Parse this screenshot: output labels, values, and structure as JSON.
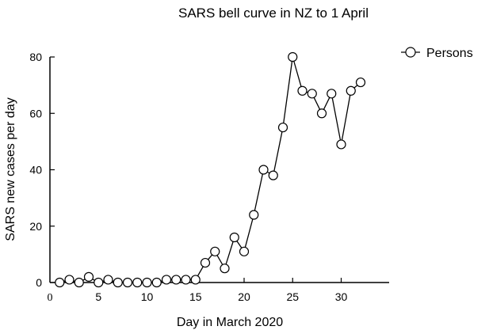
{
  "chart_data": {
    "type": "line",
    "title": "SARS bell curve in NZ to 1 April",
    "xlabel": "Day in March 2020",
    "ylabel": "SARS new cases per day",
    "xlim": [
      0,
      35
    ],
    "ylim": [
      0,
      80
    ],
    "x_ticks": [
      0,
      5,
      10,
      15,
      20,
      25,
      30
    ],
    "y_ticks": [
      0,
      20,
      40,
      60,
      80
    ],
    "grid": false,
    "legend_position": "top-right",
    "colors": {
      "line": "#000000",
      "marker_fill": "#ffffff",
      "marker_stroke": "#000000"
    },
    "series": [
      {
        "name": "Persons",
        "x": [
          1,
          2,
          3,
          4,
          5,
          6,
          7,
          8,
          9,
          10,
          11,
          12,
          13,
          14,
          15,
          16,
          17,
          18,
          19,
          20,
          21,
          22,
          23,
          24,
          25,
          26,
          27,
          28,
          29,
          30,
          31,
          32
        ],
        "y": [
          0,
          1,
          0,
          2,
          0,
          1,
          0,
          0,
          0,
          0,
          0,
          1,
          1,
          1,
          1,
          7,
          11,
          5,
          16,
          11,
          24,
          40,
          38,
          55,
          80,
          68,
          67,
          60,
          67,
          49,
          68,
          71
        ]
      }
    ]
  }
}
